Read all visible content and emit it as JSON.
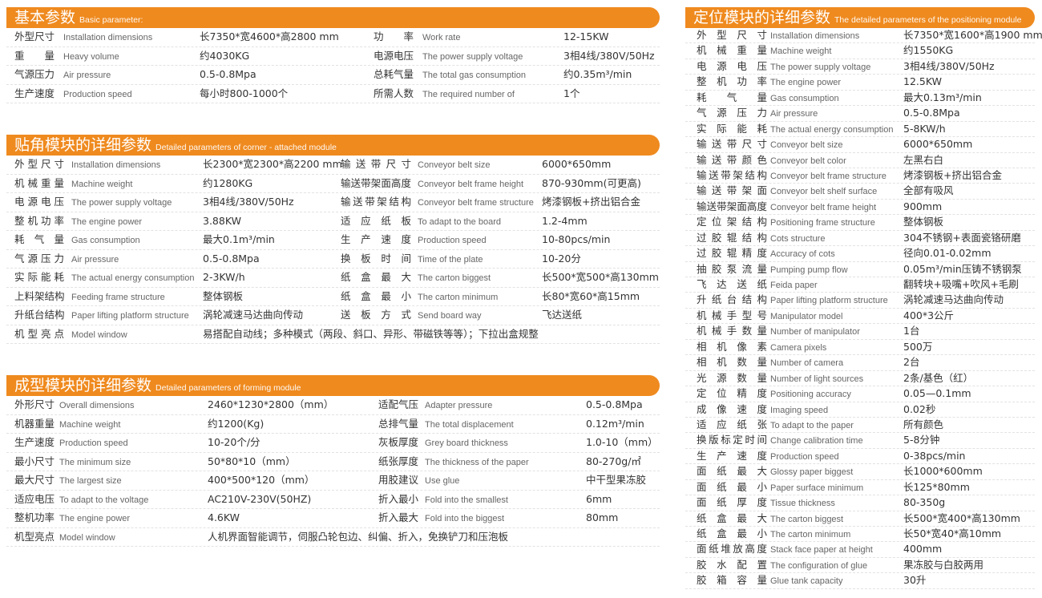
{
  "colors": {
    "accent": "#ef8a1f",
    "text": "#333333",
    "subtext": "#666666"
  },
  "basic": {
    "title": "基本参数",
    "subtitle": "Basic parameter:",
    "rows": [
      [
        "外型尺寸",
        "Installation dimensions",
        "长7350*宽4600*高2800 mm",
        "功　　率",
        "Work rate",
        "12-15KW"
      ],
      [
        "重　　量",
        "Heavy volume",
        "约4030KG",
        "电源电压",
        "The power supply voltage",
        "3相4线/380V/50Hz"
      ],
      [
        "气源压力",
        "Air pressure",
        "0.5-0.8Mpa",
        "总耗气量",
        "The total gas consumption",
        "约0.35m³/min"
      ],
      [
        "生产速度",
        "Production speed",
        "每小时800-1000个",
        "所需人数",
        "The required number of",
        "1个"
      ]
    ]
  },
  "corner": {
    "title": "贴角模块的详细参数",
    "subtitle": "Detailed parameters of corner - attached module",
    "rows": [
      [
        "外型尺寸",
        "Installation dimensions",
        "长2300*宽2300*高2200 mm",
        "输送带尺寸",
        "Conveyor belt size",
        "6000*650mm"
      ],
      [
        "机械重量",
        "Machine weight",
        "约1280KG",
        "输送带架面高度",
        "Conveyor belt frame height",
        "870-930mm(可更高)"
      ],
      [
        "电源电压",
        "The power supply voltage",
        "3相4线/380V/50Hz",
        "输送带架结构",
        "Conveyor belt frame structure",
        "烤漆钢板+挤出铝合金"
      ],
      [
        "整机功率",
        "The engine power",
        "3.88KW",
        "适应纸板",
        "To adapt to the board",
        "1.2-4mm"
      ],
      [
        "耗气量",
        "Gas consumption",
        "最大0.1m³/min",
        "生产速度",
        "Production speed",
        "10-80pcs/min"
      ],
      [
        "气源压力",
        "Air pressure",
        "0.5-0.8Mpa",
        "换板时间",
        "Time of the plate",
        "10-20分"
      ],
      [
        "实际能耗",
        "The actual energy consumption",
        "2-3KW/h",
        "纸盒最大",
        "The carton biggest",
        "长500*宽500*高130mm"
      ],
      [
        "上料架结构",
        "Feeding frame structure",
        "整体钢板",
        "纸盒最小",
        "The carton minimum",
        "长80*宽60*高15mm"
      ],
      [
        "升纸台结构",
        "Paper lifting platform structure",
        "涡轮减速马达曲向传动",
        "送板方式",
        "Send board way",
        "飞达送纸"
      ],
      [
        "机型亮点",
        "Model window",
        "易搭配自动线；多种模式（两段、斜口、异形、带磁铁等等）；下拉出盒规整",
        "",
        "",
        ""
      ]
    ]
  },
  "forming": {
    "title": "成型模块的详细参数",
    "subtitle": "Detailed parameters of forming module",
    "rows": [
      [
        "外形尺寸",
        "Overall dimensions",
        "2460*1230*2800（mm）",
        "适配气压",
        "Adapter pressure",
        "0.5-0.8Mpa"
      ],
      [
        "机器重量",
        "Machine weight",
        "约1200(Kg)",
        "总排气量",
        "The total displacement",
        "0.12m³/min"
      ],
      [
        "生产速度",
        "Production speed",
        "10-20个/分",
        "灰板厚度",
        "Grey board thickness",
        "1.0-10（mm）"
      ],
      [
        "最小尺寸",
        "The minimum size",
        "50*80*10（mm）",
        "纸张厚度",
        "The thickness of the paper",
        "80-270g/㎡"
      ],
      [
        "最大尺寸",
        "The largest size",
        "400*500*120（mm）",
        "用胶建议",
        "Use glue",
        "中干型果冻胶"
      ],
      [
        "适应电压",
        "To adapt to the voltage",
        "AC210V-230V(50HZ)",
        "折入最小",
        "Fold into the smallest",
        "6mm"
      ],
      [
        "整机功率",
        "The engine power",
        "4.6KW",
        "折入最大",
        "Fold into the biggest",
        "80mm"
      ],
      [
        "机型亮点",
        "Model window",
        "人机界面智能调节，伺服凸轮包边、纠偏、折入，免换铲刀和压泡板",
        "",
        "",
        ""
      ]
    ]
  },
  "positioning": {
    "title": "定位模块的详细参数",
    "subtitle": "The detailed parameters of the positioning module",
    "rows": [
      [
        "外型尺寸",
        "Installation dimensions",
        "长7350*宽1600*高1900 mm"
      ],
      [
        "机械重量",
        "Machine weight",
        "约1550KG"
      ],
      [
        "电源电压",
        "The power supply voltage",
        "3相4线/380V/50Hz"
      ],
      [
        "整机功率",
        "The engine power",
        "12.5KW"
      ],
      [
        "耗气量",
        "Gas consumption",
        "最大0.13m³/min"
      ],
      [
        "气源压力",
        "Air pressure",
        "0.5-0.8Mpa"
      ],
      [
        "实际能耗",
        "The actual energy consumption",
        "5-8KW/h"
      ],
      [
        "输送带尺寸",
        "Conveyor belt size",
        "6000*650mm"
      ],
      [
        "输送带颜色",
        "Conveyor belt color",
        "左黑右白"
      ],
      [
        "输送带架结构",
        "Conveyor belt frame structure",
        "烤漆钢板+挤出铝合金"
      ],
      [
        "输送带架面",
        "Conveyor belt shelf surface",
        "全部有吸风"
      ],
      [
        "输送带架面高度",
        "Conveyor belt frame height",
        "900mm"
      ],
      [
        "定位架结构",
        "Positioning frame structure",
        "整体钢板"
      ],
      [
        "过胶辊结构",
        "Cots structure",
        "304不锈钢+表面瓷铬研磨"
      ],
      [
        "过胶辊精度",
        "Accuracy of cots",
        "径向0.01-0.02mm"
      ],
      [
        "抽胶泵流量",
        "Pumping pump flow",
        "0.05m³/min压铸不锈钢泵"
      ],
      [
        "飞达送纸",
        "Feida paper",
        "翻转块+吸嘴+吹风+毛刷"
      ],
      [
        "升纸台结构",
        "Paper lifting platform structure",
        "涡轮减速马达曲向传动"
      ],
      [
        "机械手型号",
        "Manipulator model",
        "400*3公斤"
      ],
      [
        "机械手数量",
        "Number of manipulator",
        "1台"
      ],
      [
        "相机像素",
        "Camera pixels",
        "500万"
      ],
      [
        "相机数量",
        "Number of camera",
        "2台"
      ],
      [
        "光源数量",
        "Number of light sources",
        "2条/基色（红）"
      ],
      [
        "定位精度",
        "Positioning accuracy",
        "0.05—0.1mm"
      ],
      [
        "成像速度",
        "Imaging speed",
        "0.02秒"
      ],
      [
        "适应纸张",
        "To adapt to the paper",
        "所有颜色"
      ],
      [
        "换版标定时间",
        "Change calibration time",
        "5-8分钟"
      ],
      [
        "生产速度",
        "Production speed",
        "0-38pcs/min"
      ],
      [
        "面纸最大",
        "Glossy paper biggest",
        "长1000*600mm"
      ],
      [
        "面纸最小",
        "Paper surface minimum",
        "长125*80mm"
      ],
      [
        "面纸厚度",
        "Tissue thickness",
        "80-350g"
      ],
      [
        "纸盒最大",
        "The carton biggest",
        "长500*宽400*高130mm"
      ],
      [
        "纸盒最小",
        "The carton minimum",
        "长50*宽40*高10mm"
      ],
      [
        "面纸堆放高度",
        "Stack face paper at height",
        "400mm"
      ],
      [
        "胶水配置",
        "The configuration of glue",
        "果冻胶与白胶两用"
      ],
      [
        "胶箱容量",
        "Glue tank capacity",
        "30升"
      ]
    ]
  }
}
